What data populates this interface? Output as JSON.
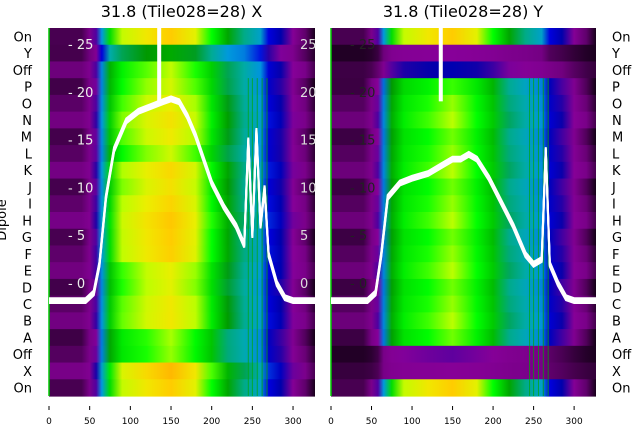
{
  "chart_data": {
    "type": "heatmap",
    "ylabel": "Dipole",
    "row_labels": [
      "On",
      "Y",
      "Off",
      "P",
      "O",
      "N",
      "M",
      "L",
      "K",
      "J",
      "I",
      "H",
      "G",
      "F",
      "E",
      "D",
      "C",
      "B",
      "A",
      "Off",
      "X",
      "On"
    ],
    "x_ticks": [
      0,
      50,
      100,
      150,
      200,
      250,
      300
    ],
    "xlim": [
      0,
      327
    ],
    "overlay_ticks": [
      0,
      5,
      10,
      15,
      20,
      25
    ],
    "overlay_ylim": [
      -3,
      27.5
    ],
    "panels": [
      {
        "title": "31.8 (Tile028=28) X",
        "row_gain": [
          1.0,
          0.62,
          0.85,
          0.9,
          0.92,
          0.93,
          0.94,
          0.88,
          0.95,
          0.96,
          0.97,
          0.98,
          1.0,
          0.98,
          0.9,
          0.92,
          0.93,
          0.92,
          0.86,
          0.84,
          1.0,
          1.0
        ],
        "line_x": [
          0,
          45,
          55,
          62,
          70,
          80,
          95,
          110,
          125,
          140,
          150,
          160,
          170,
          180,
          190,
          200,
          215,
          230,
          240,
          245,
          250,
          255,
          260,
          265,
          270,
          280,
          290,
          300,
          327
        ],
        "line_y": [
          -1.8,
          -1.8,
          -1,
          2,
          9,
          14,
          17,
          18,
          18.5,
          19,
          19.3,
          19,
          17.5,
          15.5,
          13,
          10.5,
          8,
          6,
          4,
          15,
          5,
          16,
          6,
          10,
          3,
          0,
          -1.5,
          -1.8,
          -1.8
        ]
      },
      {
        "title": "31.8 (Tile028=28) Y",
        "row_gain": [
          1.0,
          0.12,
          0.18,
          0.82,
          0.84,
          0.84,
          0.84,
          0.84,
          0.84,
          0.84,
          0.84,
          0.84,
          0.84,
          0.84,
          0.84,
          0.84,
          0.84,
          0.84,
          0.84,
          0.14,
          0.1,
          1.0
        ],
        "line_x": [
          0,
          45,
          55,
          62,
          70,
          85,
          100,
          120,
          140,
          150,
          160,
          170,
          180,
          195,
          210,
          225,
          240,
          250,
          260,
          265,
          270,
          280,
          290,
          300,
          327
        ],
        "line_y": [
          -1.8,
          -1.8,
          -1,
          3,
          9,
          10.5,
          11,
          11.5,
          12.5,
          13,
          13,
          13.5,
          13,
          11,
          8.5,
          6,
          3,
          2,
          2.5,
          14,
          2,
          0,
          -1.5,
          -1.8,
          -1.8
        ]
      }
    ],
    "profile_channels": [
      0,
      40,
      50,
      58,
      65,
      75,
      90,
      120,
      150,
      180,
      200,
      220,
      240,
      260,
      270,
      285,
      300,
      315,
      327
    ],
    "profile_level": [
      0.03,
      0.03,
      0.06,
      0.12,
      0.3,
      0.55,
      0.66,
      0.71,
      0.75,
      0.69,
      0.6,
      0.47,
      0.4,
      0.32,
      0.2,
      0.15,
      0.09,
      0.04,
      0.01
    ]
  }
}
